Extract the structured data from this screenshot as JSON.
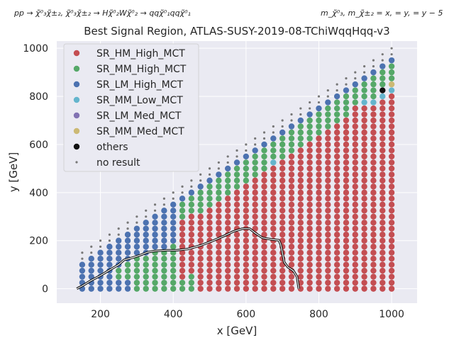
{
  "chart_data": {
    "type": "scatter",
    "title": "Best Signal Region, ATLAS-SUSY-2019-08-TChiWqqHqq-v3",
    "process_label": "pp → χ̃⁰₃χ̃±₂, χ̃⁰₃χ̃±₂ → Hχ̃⁰₂Wχ̃⁰₂ → qqχ̃⁰₁qqχ̃⁰₁",
    "mass_label": "m_χ̃⁰₃, m_χ̃±₂ = x,  = y,  = y − 5",
    "xlabel": "x [GeV]",
    "ylabel": "y [GeV]",
    "xlim": [
      80,
      1070
    ],
    "ylim": [
      -60,
      1030
    ],
    "xticks": [
      200,
      400,
      600,
      800,
      1000
    ],
    "yticks": [
      0,
      200,
      400,
      600,
      800,
      1000
    ],
    "grid": true,
    "legend_position": "top-left",
    "series": [
      {
        "name": "SR_HM_High_MCT",
        "color": "#c44e52"
      },
      {
        "name": "SR_MM_High_MCT",
        "color": "#55a868"
      },
      {
        "name": "SR_LM_High_MCT",
        "color": "#4c72b0"
      },
      {
        "name": "SR_MM_Low_MCT",
        "color": "#64b5cd"
      },
      {
        "name": "SR_LM_Med_MCT",
        "color": "#8172b2"
      },
      {
        "name": "SR_MM_Med_MCT",
        "color": "#ccb974"
      },
      {
        "name": "others",
        "color": "#111111"
      },
      {
        "name": "no result",
        "color": "#777777"
      }
    ],
    "grid_points": {
      "x_start": 150,
      "x_end": 1000,
      "x_step": 25,
      "y_start": 0,
      "y_step": 25
    },
    "exclusion_contour": [
      [
        135,
        0
      ],
      [
        150,
        12
      ],
      [
        175,
        35
      ],
      [
        200,
        55
      ],
      [
        225,
        78
      ],
      [
        250,
        100
      ],
      [
        265,
        120
      ],
      [
        290,
        130
      ],
      [
        310,
        140
      ],
      [
        330,
        152
      ],
      [
        350,
        157
      ],
      [
        380,
        160
      ],
      [
        410,
        160
      ],
      [
        440,
        165
      ],
      [
        475,
        180
      ],
      [
        510,
        200
      ],
      [
        540,
        220
      ],
      [
        565,
        238
      ],
      [
        590,
        250
      ],
      [
        610,
        250
      ],
      [
        625,
        232
      ],
      [
        645,
        212
      ],
      [
        670,
        205
      ],
      [
        690,
        202
      ],
      [
        695,
        185
      ],
      [
        700,
        150
      ],
      [
        705,
        110
      ],
      [
        715,
        90
      ],
      [
        730,
        75
      ],
      [
        740,
        50
      ],
      [
        745,
        0
      ]
    ]
  }
}
